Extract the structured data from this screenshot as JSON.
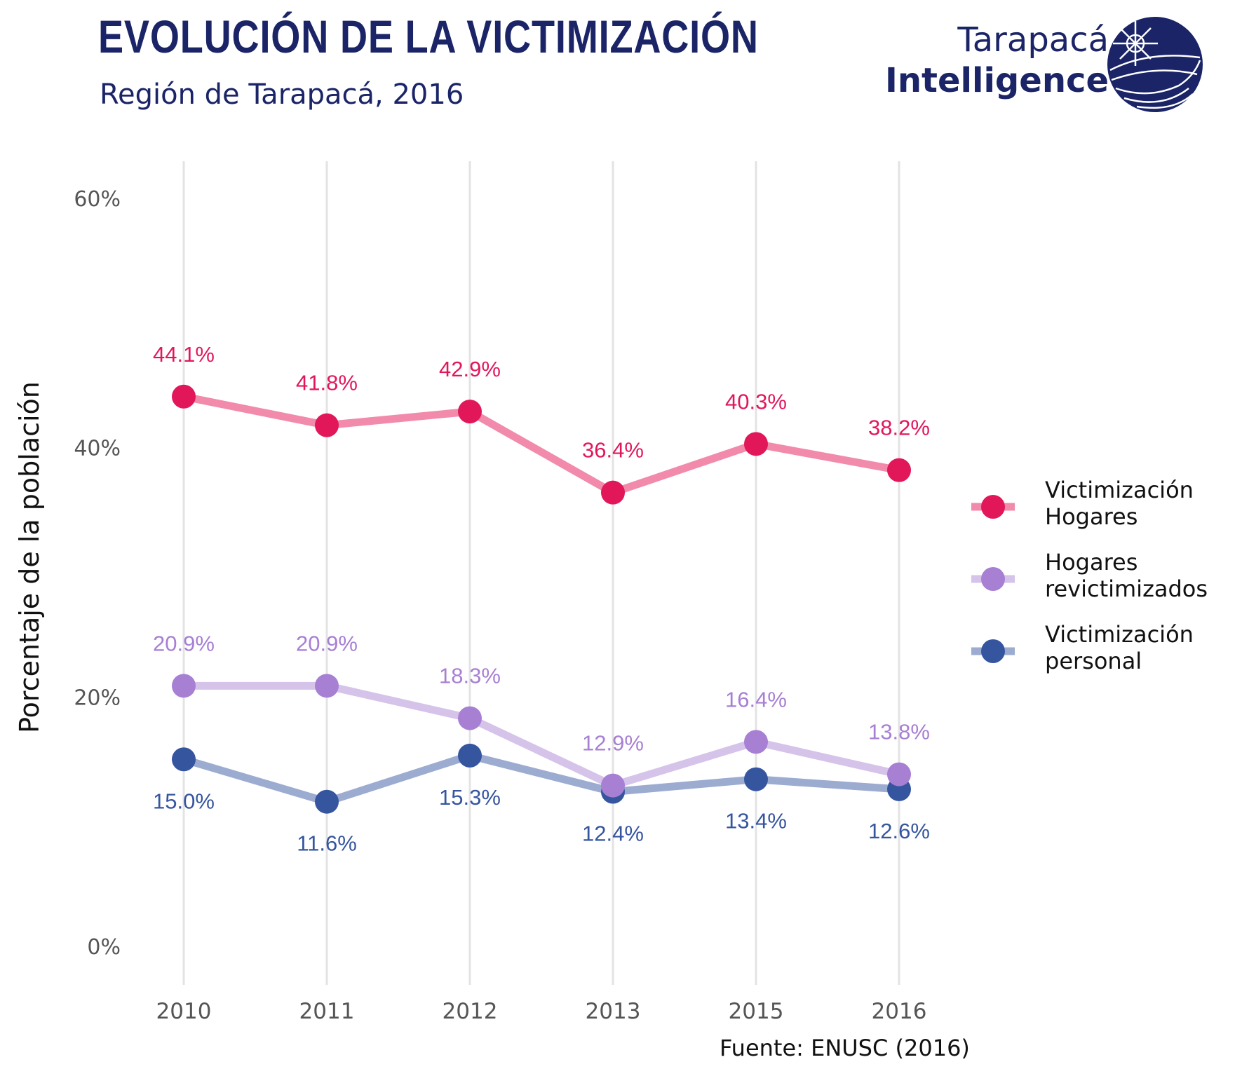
{
  "header": {
    "title": "EVOLUCIÓN DE LA VICTIMIZACIÓN",
    "subtitle": "Región de Tarapacá, 2016"
  },
  "logo": {
    "line1": "Tarapacá",
    "line2": "Intelligence",
    "icon": "globe-compass-icon",
    "color": "#1a2467"
  },
  "source": "Fuente: ENUSC (2016)",
  "chart_data": {
    "type": "line",
    "categories": [
      "2010",
      "2011",
      "2012",
      "2013",
      "2015",
      "2016"
    ],
    "ylabel": "Porcentaje de la población",
    "ylim": [
      0,
      60
    ],
    "yticks": [
      0,
      20,
      40,
      60
    ],
    "ytick_labels": [
      "0%",
      "20%",
      "40%",
      "60%"
    ],
    "grid": "vertical-only",
    "legend_position": "right",
    "series": [
      {
        "name": "Victimización Hogares",
        "legend_lines": [
          "Victimización",
          "Hogares"
        ],
        "values": [
          44.1,
          41.8,
          42.9,
          36.4,
          40.3,
          38.2
        ],
        "labels": [
          "44.1%",
          "41.8%",
          "42.9%",
          "36.4%",
          "40.3%",
          "38.2%"
        ],
        "label_position": "above",
        "point_color": "#e2175a",
        "line_color": "#f18aab"
      },
      {
        "name": "Hogares revictimizados",
        "legend_lines": [
          "Hogares",
          "revictimizados"
        ],
        "values": [
          20.9,
          20.9,
          18.3,
          12.9,
          16.4,
          13.8
        ],
        "labels": [
          "20.9%",
          "20.9%",
          "18.3%",
          "12.9%",
          "16.4%",
          "13.8%"
        ],
        "label_position": "above",
        "point_color": "#a77fd3",
        "line_color": "#d5c3ea"
      },
      {
        "name": "Victimización personal",
        "legend_lines": [
          "Victimización",
          "personal"
        ],
        "values": [
          15.0,
          11.6,
          15.3,
          12.4,
          13.4,
          12.6
        ],
        "labels": [
          "15.0%",
          "11.6%",
          "15.3%",
          "12.4%",
          "13.4%",
          "12.6%"
        ],
        "label_position": "below",
        "point_color": "#35559f",
        "line_color": "#9cabd0"
      }
    ]
  }
}
